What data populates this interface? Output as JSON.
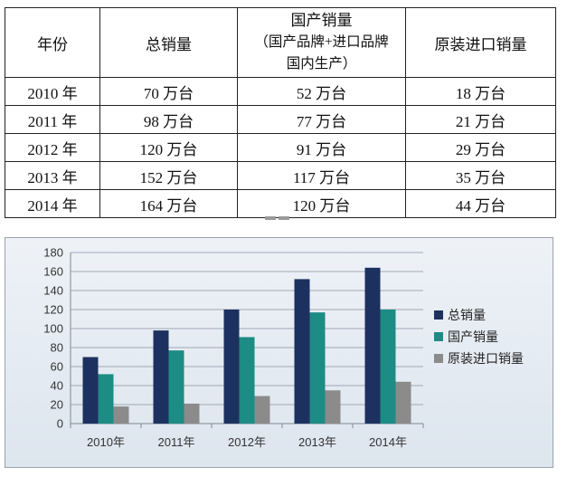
{
  "table": {
    "header": {
      "year": "年份",
      "total": "总销量",
      "domestic_lines": [
        "国产销量",
        "（国产品牌+进口品牌",
        "国内生产）"
      ],
      "import": "原装进口销量"
    },
    "rows": [
      [
        "2010 年",
        "70 万台",
        "52 万台",
        "18 万台"
      ],
      [
        "2011 年",
        "98 万台",
        "77 万台",
        "21 万台"
      ],
      [
        "2012 年",
        "120 万台",
        "91 万台",
        "29 万台"
      ],
      [
        "2013 年",
        "152 万台",
        "117 万台",
        "35 万台"
      ],
      [
        "2014 年",
        "164 万台",
        "120 万台",
        "44 万台"
      ]
    ]
  },
  "chart_data": {
    "type": "bar",
    "title": "",
    "xlabel": "",
    "ylabel": "",
    "categories": [
      "2010年",
      "2011年",
      "2012年",
      "2013年",
      "2014年"
    ],
    "series": [
      {
        "name": "总销量",
        "values": [
          70,
          98,
          120,
          152,
          164
        ],
        "color": "#1d3160"
      },
      {
        "name": "国产销量",
        "values": [
          52,
          77,
          91,
          117,
          120
        ],
        "color": "#1c8c84"
      },
      {
        "name": "原装进口销量",
        "values": [
          18,
          21,
          29,
          35,
          44
        ],
        "color": "#8b8b8b"
      }
    ],
    "ylim": [
      0,
      180
    ],
    "yticks": [
      0,
      20,
      40,
      60,
      80,
      100,
      120,
      140,
      160,
      180
    ],
    "grid": true,
    "legend": "right"
  }
}
